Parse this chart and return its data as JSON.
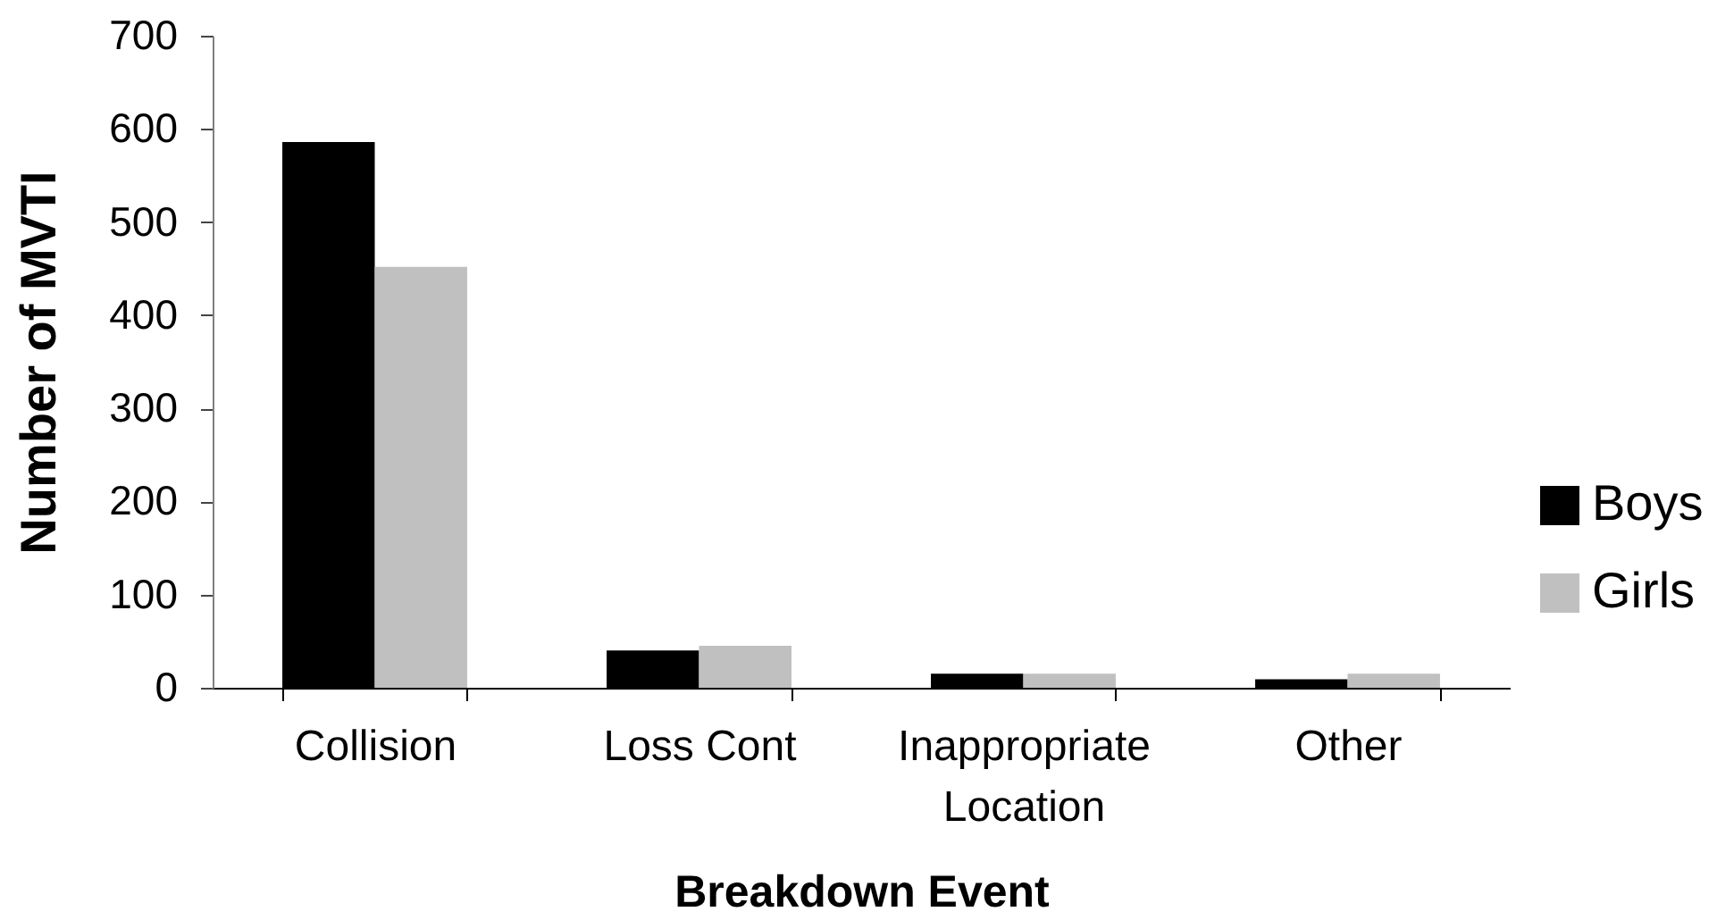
{
  "chart_data": {
    "type": "bar",
    "xlabel": "Breakdown Event",
    "ylabel": "Number of MVTI",
    "categories": [
      "Collision",
      "Loss Cont",
      "Inappropriate Location",
      "Other"
    ],
    "series": [
      {
        "name": "Boys",
        "color": "#000000",
        "values": [
          586,
          40,
          15,
          9
        ]
      },
      {
        "name": "Girls",
        "color": "#c0c0c0",
        "values": [
          452,
          45,
          15,
          15
        ]
      }
    ],
    "ylim": [
      0,
      700
    ],
    "yticks": [
      0,
      100,
      200,
      300,
      400,
      500,
      600,
      700
    ],
    "grid": false,
    "legend": "right"
  }
}
